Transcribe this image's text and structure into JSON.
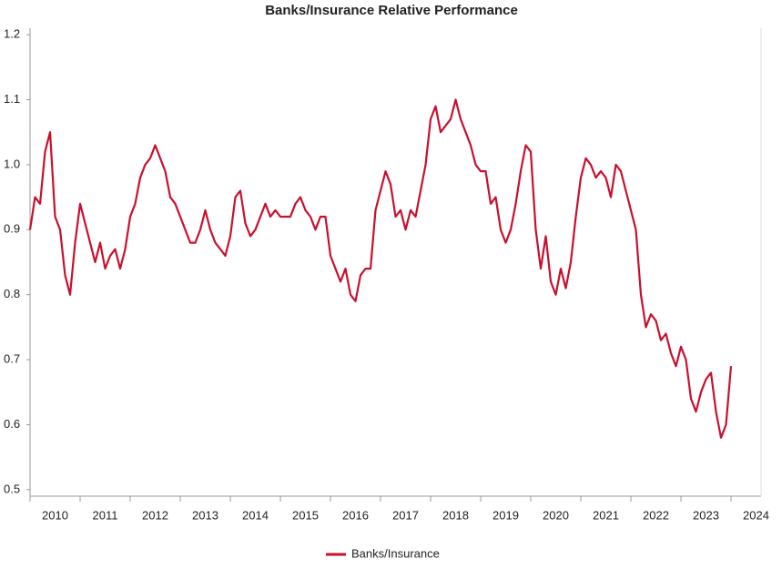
{
  "chart_data": {
    "type": "line",
    "title": "Banks/Insurance Relative Performance",
    "x": [
      2010.0,
      2010.1,
      2010.2,
      2010.3,
      2010.4,
      2010.5,
      2010.6,
      2010.7,
      2010.8,
      2010.9,
      2011.0,
      2011.1,
      2011.2,
      2011.3,
      2011.4,
      2011.5,
      2011.6,
      2011.7,
      2011.8,
      2011.9,
      2012.0,
      2012.1,
      2012.2,
      2012.3,
      2012.4,
      2012.5,
      2012.6,
      2012.7,
      2012.8,
      2012.9,
      2013.0,
      2013.1,
      2013.2,
      2013.3,
      2013.4,
      2013.5,
      2013.6,
      2013.7,
      2013.8,
      2013.9,
      2014.0,
      2014.1,
      2014.2,
      2014.3,
      2014.4,
      2014.5,
      2014.6,
      2014.7,
      2014.8,
      2014.9,
      2015.0,
      2015.1,
      2015.2,
      2015.3,
      2015.4,
      2015.5,
      2015.6,
      2015.7,
      2015.8,
      2015.9,
      2016.0,
      2016.1,
      2016.2,
      2016.3,
      2016.4,
      2016.5,
      2016.6,
      2016.7,
      2016.8,
      2016.9,
      2017.0,
      2017.1,
      2017.2,
      2017.3,
      2017.4,
      2017.5,
      2017.6,
      2017.7,
      2017.8,
      2017.9,
      2018.0,
      2018.1,
      2018.2,
      2018.3,
      2018.4,
      2018.5,
      2018.6,
      2018.7,
      2018.8,
      2018.9,
      2019.0,
      2019.1,
      2019.2,
      2019.3,
      2019.4,
      2019.5,
      2019.6,
      2019.7,
      2019.8,
      2019.9,
      2020.0,
      2020.1,
      2020.2,
      2020.3,
      2020.4,
      2020.5,
      2020.6,
      2020.7,
      2020.8,
      2020.9,
      2021.0,
      2021.1,
      2021.2,
      2021.3,
      2021.4,
      2021.5,
      2021.6,
      2021.7,
      2021.8,
      2021.9,
      2022.0,
      2022.1,
      2022.2,
      2022.3,
      2022.4,
      2022.5,
      2022.6,
      2022.7,
      2022.8,
      2022.9,
      2023.0,
      2023.1,
      2023.2,
      2023.3,
      2023.4,
      2023.5,
      2023.6,
      2023.7,
      2023.8,
      2023.9,
      2024.0
    ],
    "series": [
      {
        "name": "Banks/Insurance",
        "color": "#c8102e",
        "values": [
          0.9,
          0.95,
          0.94,
          1.02,
          1.05,
          0.92,
          0.9,
          0.83,
          0.8,
          0.88,
          0.94,
          0.91,
          0.88,
          0.85,
          0.88,
          0.84,
          0.86,
          0.87,
          0.84,
          0.87,
          0.92,
          0.94,
          0.98,
          1.0,
          1.01,
          1.03,
          1.01,
          0.99,
          0.95,
          0.94,
          0.92,
          0.9,
          0.88,
          0.88,
          0.9,
          0.93,
          0.9,
          0.88,
          0.87,
          0.86,
          0.89,
          0.95,
          0.96,
          0.91,
          0.89,
          0.9,
          0.92,
          0.94,
          0.92,
          0.93,
          0.92,
          0.92,
          0.92,
          0.94,
          0.95,
          0.93,
          0.92,
          0.9,
          0.92,
          0.92,
          0.86,
          0.84,
          0.82,
          0.84,
          0.8,
          0.79,
          0.83,
          0.84,
          0.84,
          0.93,
          0.96,
          0.99,
          0.97,
          0.92,
          0.93,
          0.9,
          0.93,
          0.92,
          0.96,
          1.0,
          1.07,
          1.09,
          1.05,
          1.06,
          1.07,
          1.1,
          1.07,
          1.05,
          1.03,
          1.0,
          0.99,
          0.99,
          0.94,
          0.95,
          0.9,
          0.88,
          0.9,
          0.94,
          0.99,
          1.03,
          1.02,
          0.9,
          0.84,
          0.89,
          0.82,
          0.8,
          0.84,
          0.81,
          0.85,
          0.92,
          0.98,
          1.01,
          1.0,
          0.98,
          0.99,
          0.98,
          0.95,
          1.0,
          0.99,
          0.96,
          0.93,
          0.9,
          0.8,
          0.75,
          0.77,
          0.76,
          0.73,
          0.74,
          0.71,
          0.69,
          0.72,
          0.7,
          0.64,
          0.62,
          0.65,
          0.67,
          0.68,
          0.62,
          0.58,
          0.6,
          0.69
        ]
      }
    ],
    "xlim": [
      2010,
      2024.6
    ],
    "xticks": [
      2010,
      2011,
      2012,
      2013,
      2014,
      2015,
      2016,
      2017,
      2018,
      2019,
      2020,
      2021,
      2022,
      2023,
      2024
    ],
    "ylim": [
      0.49,
      1.21
    ],
    "yticks": [
      0.5,
      0.6,
      0.7,
      0.8,
      0.9,
      {
        "value": 1,
        "label": "1.0"
      },
      1.1,
      1.2
    ],
    "grid": false,
    "legend": "bottom"
  }
}
